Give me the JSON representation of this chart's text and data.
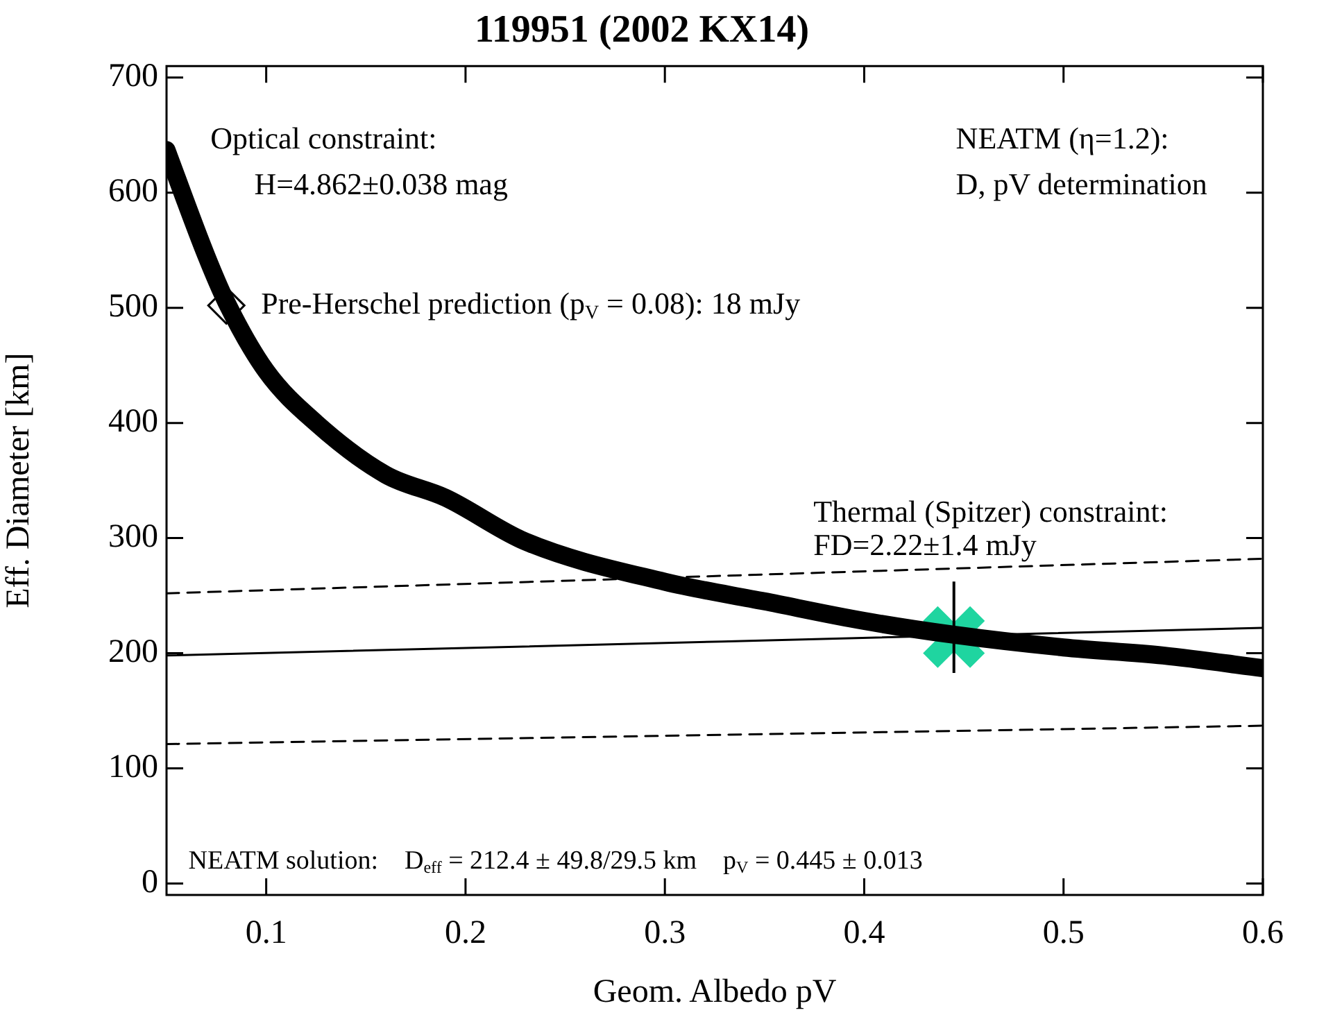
{
  "chart_data": {
    "type": "line",
    "title": "119951 (2002 KX14)",
    "xlabel": "Geom. Albedo pV",
    "ylabel": "Eff. Diameter [km]",
    "xlim": [
      0.05,
      0.6
    ],
    "xticks": [
      0.1,
      0.2,
      0.3,
      0.4,
      0.5,
      0.6
    ],
    "ylim": [
      -10,
      710
    ],
    "yticks": [
      0,
      100,
      200,
      300,
      400,
      500,
      600,
      700
    ],
    "grid": false,
    "legend": false,
    "series": [
      {
        "color": "#000000",
        "marker": "none",
        "line_style": "solid",
        "x": [
          0.05,
          0.07,
          0.08,
          0.1,
          0.125,
          0.16,
          0.19,
          0.23,
          0.3,
          0.35,
          0.4,
          0.445,
          0.5,
          0.55,
          0.6
        ],
        "values": [
          637,
          545,
          505,
          445,
          400,
          355,
          335,
          297,
          262,
          245,
          228,
          216,
          205,
          198,
          187
        ]
      },
      {
        "color": "#000000",
        "marker": "none",
        "line_style": "solid",
        "x": [
          0.05,
          0.6
        ],
        "values": [
          198,
          222
        ]
      },
      {
        "color": "#000000",
        "marker": "none",
        "line_style": "dashed",
        "x": [
          0.05,
          0.6
        ],
        "values": [
          252,
          282
        ]
      },
      {
        "color": "#000000",
        "marker": "none",
        "line_style": "dashed",
        "x": [
          0.05,
          0.6
        ],
        "values": [
          121,
          137
        ]
      },
      {
        "type": "scatter",
        "color": "#000000",
        "marker": "diamond",
        "x": [
          0.08
        ],
        "values": [
          502
        ]
      },
      {
        "type": "scatter",
        "color": "#1fd5a0",
        "marker": "cross",
        "x": [
          0.445
        ],
        "values": [
          214
        ],
        "errors": [
          [
            182.9,
            262.2
          ]
        ]
      }
    ],
    "annotations": [
      "Optical constraint:",
      "H=4.862±0.038 mag",
      {
        "text": "Pre-Herschel prediction (p$_{V}$ = 0.08): 18 mJy",
        "x": 0.08,
        "y": 502
      },
      "NEATM (η=1.2):",
      "D, pV determination",
      "Thermal (Spitzer) constraint:",
      "FD=2.22±1.4 mJy",
      "NEATM solution:    D$_{eff}$ = 212.4 ± 49.8/29.5 km    p$_{V}$ = 0.445 ± 0.013"
    ]
  }
}
